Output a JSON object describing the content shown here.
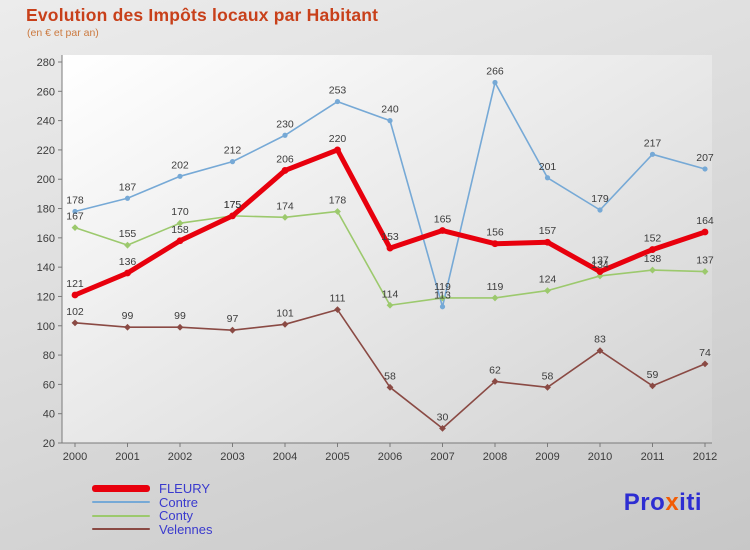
{
  "title": "Evolution des Impôts locaux par Habitant",
  "subtitle": "(en € et par an)",
  "colors": {
    "title": "#c8401a",
    "subtitle": "#cc7a40",
    "legend_text": "#3a3ace",
    "axis_text": "#3c3c3c",
    "point_label": "#3c3c3c",
    "axis_line": "#7a7a7a",
    "plot_bg_light": "#ffffff",
    "plot_bg_dark": "#d2d2d2"
  },
  "chart_data": {
    "type": "line",
    "title": "Evolution des Impôts locaux par Habitant",
    "subtitle": "(en € et par an)",
    "x_labels": [
      "2000",
      "2001",
      "2002",
      "2003",
      "2004",
      "2005",
      "2006",
      "2007",
      "2008",
      "2009",
      "2010",
      "2011",
      "2012"
    ],
    "ylim": [
      20,
      280
    ],
    "ytick_step": 20,
    "grid": false,
    "legend_position": "bottom-left",
    "series": [
      {
        "name": "FLEURY",
        "color": "#e8000d",
        "line_width": 5,
        "marker": "circle",
        "values": [
          121,
          136,
          158,
          175,
          206,
          220,
          153,
          165,
          156,
          157,
          137,
          152,
          164
        ]
      },
      {
        "name": "Contre",
        "color": "#76a9d6",
        "line_width": 1.6,
        "marker": "circle",
        "values": [
          178,
          187,
          202,
          212,
          230,
          253,
          240,
          113,
          266,
          201,
          179,
          217,
          207
        ]
      },
      {
        "name": "Conty",
        "color": "#9cc96d",
        "line_width": 1.6,
        "marker": "diamond",
        "values": [
          167,
          155,
          170,
          175,
          174,
          178,
          114,
          119,
          119,
          124,
          134,
          138,
          137
        ]
      },
      {
        "name": "Velennes",
        "color": "#8a4a44",
        "line_width": 1.6,
        "marker": "diamond",
        "values": [
          102,
          99,
          99,
          97,
          101,
          111,
          58,
          30,
          62,
          58,
          83,
          59,
          74
        ]
      }
    ]
  },
  "logo": {
    "parts": [
      {
        "text": "Pro",
        "color": "#2d2dd2"
      },
      {
        "text": "x",
        "color": "#f25c05"
      },
      {
        "text": "iti",
        "color": "#2d2dd2"
      }
    ]
  }
}
